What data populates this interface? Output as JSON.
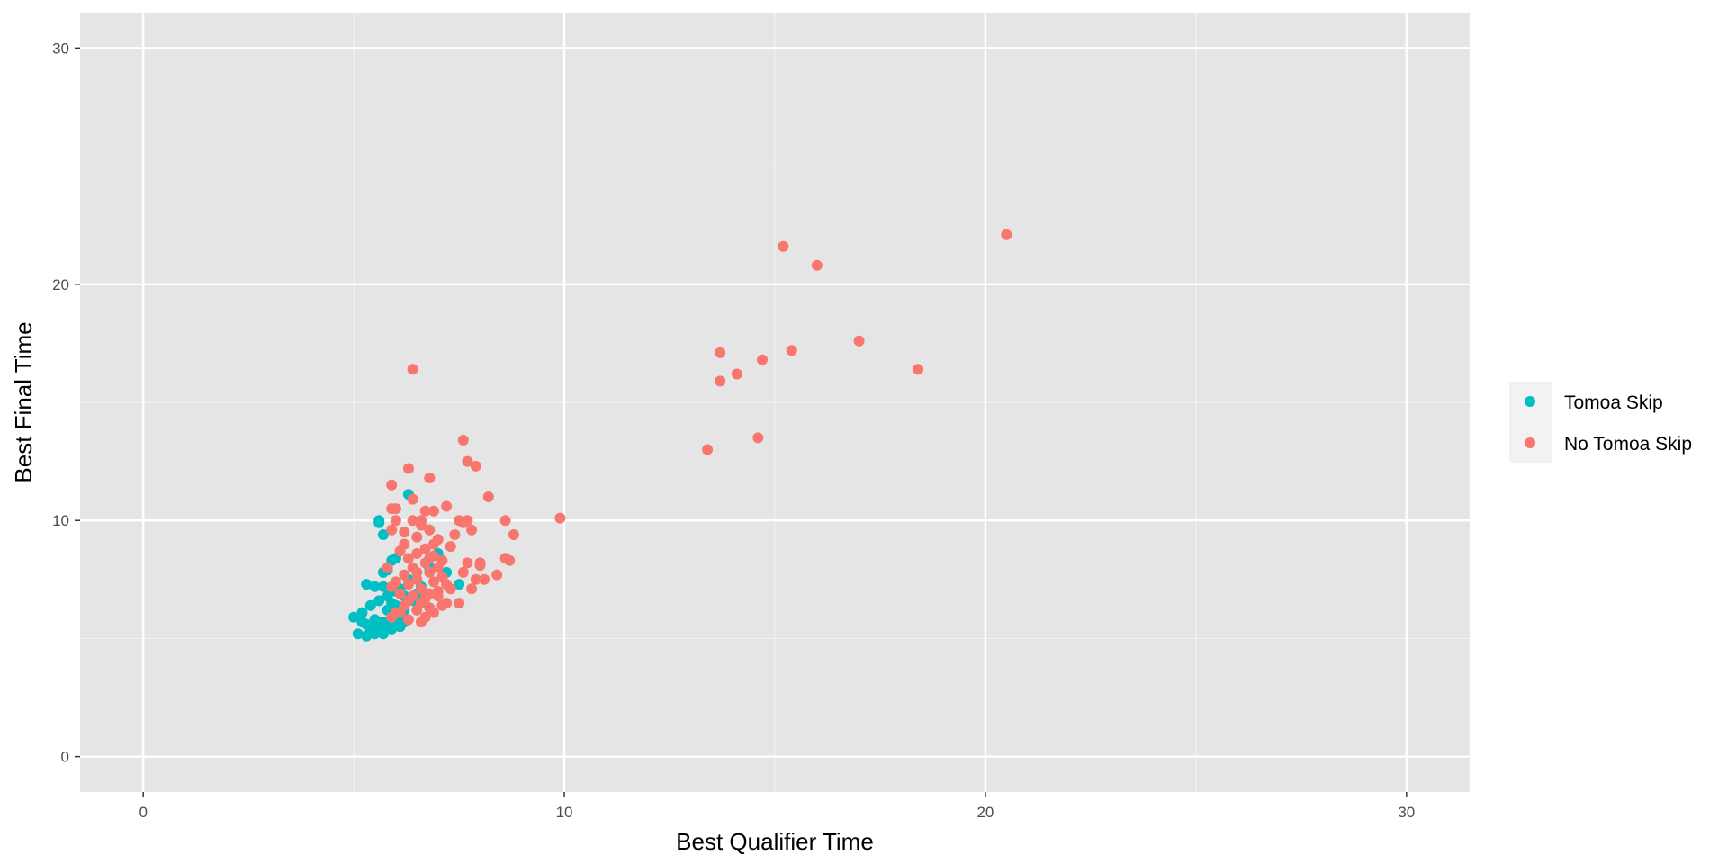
{
  "chart_data": {
    "type": "scatter",
    "xlabel": "Best Qualifier Time",
    "ylabel": "Best Final Time",
    "xlim": [
      -1.5,
      31.5
    ],
    "ylim": [
      -1.5,
      31.5
    ],
    "x_ticks": [
      0,
      10,
      20,
      30
    ],
    "y_ticks": [
      0,
      10,
      20,
      30
    ],
    "x_minor": [
      5,
      15,
      25
    ],
    "y_minor": [
      5,
      15,
      25
    ],
    "grid": true,
    "legend_position": "right",
    "series": [
      {
        "name": "Tomoa Skip",
        "color": "#00BFC4",
        "points": [
          [
            5.0,
            5.9
          ],
          [
            5.2,
            6.1
          ],
          [
            5.1,
            5.2
          ],
          [
            5.3,
            5.1
          ],
          [
            5.4,
            5.3
          ],
          [
            5.5,
            5.2
          ],
          [
            5.3,
            5.6
          ],
          [
            5.5,
            5.8
          ],
          [
            5.6,
            5.5
          ],
          [
            5.7,
            5.7
          ],
          [
            5.8,
            5.6
          ],
          [
            5.9,
            5.9
          ],
          [
            6.0,
            5.8
          ],
          [
            6.1,
            6.0
          ],
          [
            6.2,
            6.2
          ],
          [
            5.4,
            6.4
          ],
          [
            5.6,
            6.6
          ],
          [
            5.8,
            6.8
          ],
          [
            5.5,
            7.2
          ],
          [
            5.3,
            7.3
          ],
          [
            5.7,
            7.8
          ],
          [
            5.8,
            7.9
          ],
          [
            5.9,
            8.3
          ],
          [
            6.0,
            8.4
          ],
          [
            5.7,
            9.4
          ],
          [
            5.6,
            9.9
          ],
          [
            5.6,
            10.0
          ],
          [
            6.3,
            11.1
          ],
          [
            5.7,
            7.2
          ],
          [
            6.0,
            7.0
          ],
          [
            6.2,
            6.8
          ],
          [
            6.4,
            6.6
          ],
          [
            6.5,
            6.9
          ],
          [
            6.6,
            7.2
          ],
          [
            5.9,
            5.4
          ],
          [
            6.1,
            5.5
          ],
          [
            5.4,
            5.5
          ],
          [
            5.6,
            5.4
          ],
          [
            5.2,
            5.7
          ],
          [
            5.8,
            6.2
          ],
          [
            6.0,
            6.4
          ],
          [
            7.2,
            7.8
          ],
          [
            7.5,
            7.3
          ],
          [
            7.0,
            8.6
          ],
          [
            6.8,
            8.0
          ],
          [
            6.3,
            7.5
          ],
          [
            6.1,
            7.1
          ],
          [
            5.9,
            6.5
          ],
          [
            6.2,
            5.7
          ],
          [
            5.7,
            5.2
          ]
        ]
      },
      {
        "name": "No Tomoa Skip",
        "color": "#F8766D",
        "points": [
          [
            6.4,
            8.0
          ],
          [
            6.5,
            7.5
          ],
          [
            6.7,
            8.2
          ],
          [
            6.8,
            7.8
          ],
          [
            6.6,
            7.1
          ],
          [
            6.3,
            7.3
          ],
          [
            6.2,
            7.7
          ],
          [
            6.9,
            7.4
          ],
          [
            7.0,
            8.0
          ],
          [
            6.5,
            8.6
          ],
          [
            6.7,
            8.8
          ],
          [
            6.4,
            6.8
          ],
          [
            6.6,
            6.5
          ],
          [
            6.8,
            6.9
          ],
          [
            7.0,
            7.0
          ],
          [
            7.1,
            7.6
          ],
          [
            6.1,
            6.9
          ],
          [
            6.0,
            7.4
          ],
          [
            6.3,
            8.4
          ],
          [
            6.9,
            8.5
          ],
          [
            7.1,
            8.3
          ],
          [
            6.2,
            6.4
          ],
          [
            6.5,
            6.2
          ],
          [
            6.8,
            6.3
          ],
          [
            6.0,
            6.1
          ],
          [
            5.9,
            5.9
          ],
          [
            6.3,
            5.8
          ],
          [
            6.7,
            5.9
          ],
          [
            7.2,
            6.5
          ],
          [
            7.0,
            6.8
          ],
          [
            7.3,
            7.1
          ],
          [
            6.9,
            9.0
          ],
          [
            6.5,
            9.3
          ],
          [
            6.2,
            9.5
          ],
          [
            5.9,
            9.6
          ],
          [
            6.0,
            10.0
          ],
          [
            6.4,
            10.0
          ],
          [
            6.7,
            10.4
          ],
          [
            6.9,
            10.4
          ],
          [
            6.6,
            10.0
          ],
          [
            6.8,
            9.6
          ],
          [
            6.0,
            10.5
          ],
          [
            5.9,
            10.5
          ],
          [
            6.4,
            10.9
          ],
          [
            6.8,
            11.8
          ],
          [
            5.9,
            11.5
          ],
          [
            6.3,
            12.2
          ],
          [
            7.2,
            10.6
          ],
          [
            7.4,
            9.4
          ],
          [
            7.5,
            10.0
          ],
          [
            7.6,
            9.9
          ],
          [
            7.7,
            10.0
          ],
          [
            7.8,
            9.6
          ],
          [
            7.6,
            13.4
          ],
          [
            7.7,
            12.5
          ],
          [
            7.9,
            12.3
          ],
          [
            8.2,
            11.0
          ],
          [
            8.6,
            10.0
          ],
          [
            8.8,
            9.4
          ],
          [
            8.6,
            8.4
          ],
          [
            8.7,
            8.3
          ],
          [
            8.4,
            7.7
          ],
          [
            8.0,
            8.2
          ],
          [
            7.9,
            7.5
          ],
          [
            8.1,
            7.5
          ],
          [
            7.8,
            7.1
          ],
          [
            7.5,
            6.5
          ],
          [
            7.6,
            7.8
          ],
          [
            7.7,
            8.2
          ],
          [
            8.0,
            8.1
          ],
          [
            9.9,
            10.1
          ],
          [
            6.4,
            16.4
          ],
          [
            13.4,
            13.0
          ],
          [
            13.7,
            15.9
          ],
          [
            13.7,
            17.1
          ],
          [
            14.1,
            16.2
          ],
          [
            14.6,
            13.5
          ],
          [
            14.7,
            16.8
          ],
          [
            15.2,
            21.6
          ],
          [
            15.4,
            17.2
          ],
          [
            16.0,
            20.8
          ],
          [
            17.0,
            17.6
          ],
          [
            18.4,
            16.4
          ],
          [
            20.5,
            22.1
          ],
          [
            6.6,
            5.7
          ],
          [
            6.9,
            6.1
          ],
          [
            7.1,
            6.4
          ],
          [
            7.2,
            7.3
          ],
          [
            6.1,
            8.7
          ],
          [
            6.2,
            9.0
          ],
          [
            6.6,
            9.8
          ],
          [
            7.0,
            9.2
          ],
          [
            7.3,
            8.9
          ],
          [
            5.8,
            8.0
          ],
          [
            5.9,
            7.2
          ],
          [
            6.1,
            6.1
          ],
          [
            6.3,
            6.6
          ],
          [
            6.7,
            6.7
          ],
          [
            6.5,
            7.8
          ],
          [
            6.8,
            8.4
          ]
        ]
      }
    ]
  }
}
